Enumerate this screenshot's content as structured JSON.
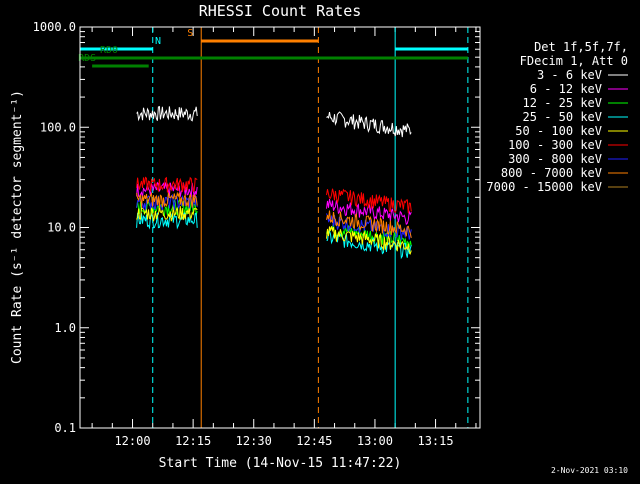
{
  "chart_data": {
    "type": "line",
    "title": "RHESSI Count Rates",
    "xlabel": "Start Time (14-Nov-15 11:47:22)",
    "ylabel": "Count Rate (s⁻¹ detector segment⁻¹)",
    "y_scale": "log",
    "ylim": [
      0.1,
      1000
    ],
    "xlim": [
      "11:47",
      "13:26"
    ],
    "x_ticks": [
      "12:00",
      "12:15",
      "12:30",
      "12:45",
      "13:00",
      "13:15"
    ],
    "y_ticks": [
      "0.1",
      "1.0",
      "10.0",
      "100.0",
      "1000.0"
    ],
    "footer": "2-Nov-2021 03:10",
    "legend_header": [
      "Det 1f,5f,7f,",
      "FDecim 1, Att 0"
    ],
    "legend_position": "top-right",
    "series": [
      {
        "name": "3 - 6 keV",
        "color": "#ffffff",
        "segments": [
          {
            "start": "12:01",
            "end": "12:16",
            "level": 138
          },
          {
            "start": "12:48",
            "end": "13:09",
            "level": 128
          }
        ]
      },
      {
        "name": "6 - 12 keV",
        "color": "#ff00ff",
        "segments": [
          {
            "start": "12:01",
            "end": "12:16",
            "level": 24
          },
          {
            "start": "12:48",
            "end": "13:09",
            "level": 17
          }
        ]
      },
      {
        "name": "12 - 25 keV",
        "color": "#00ff00",
        "segments": [
          {
            "start": "12:01",
            "end": "12:16",
            "level": 16
          },
          {
            "start": "12:48",
            "end": "13:09",
            "level": 10
          }
        ]
      },
      {
        "name": "25 - 50 keV",
        "color": "#00ffff",
        "segments": [
          {
            "start": "12:01",
            "end": "12:16",
            "level": 12
          },
          {
            "start": "12:48",
            "end": "13:09",
            "level": 8
          }
        ]
      },
      {
        "name": "50 - 100 keV",
        "color": "#ffff00",
        "segments": [
          {
            "start": "12:01",
            "end": "12:16",
            "level": 14
          },
          {
            "start": "12:48",
            "end": "13:09",
            "level": 9
          }
        ]
      },
      {
        "name": "100 - 300 keV",
        "color": "#ff0000",
        "segments": [
          {
            "start": "12:01",
            "end": "12:16",
            "level": 27
          },
          {
            "start": "12:48",
            "end": "13:09",
            "level": 22
          }
        ]
      },
      {
        "name": "300 - 800 keV",
        "color": "#2020ff",
        "segments": [
          {
            "start": "12:01",
            "end": "12:16",
            "level": 18
          },
          {
            "start": "12:48",
            "end": "13:09",
            "level": 12
          }
        ]
      },
      {
        "name": "800 - 7000 keV",
        "color": "#ff8000",
        "segments": [
          {
            "start": "12:01",
            "end": "12:16",
            "level": 19
          },
          {
            "start": "12:48",
            "end": "13:09",
            "level": 13
          }
        ]
      },
      {
        "name": "7000 - 15000 keV",
        "color": "#b08020",
        "segments": []
      }
    ],
    "annotations": [
      {
        "label": "N",
        "color": "#00ffff",
        "style": "bar",
        "start": "11:47",
        "end": "12:05"
      },
      {
        "label": "",
        "color": "#00ffff",
        "style": "bar",
        "start": "13:05",
        "end": "13:23"
      },
      {
        "label": "S",
        "color": "#ff8000",
        "style": "bar",
        "start": "12:17",
        "end": "12:46"
      },
      {
        "label": "RD0",
        "color": "#008000",
        "style": "bar",
        "start": "11:47",
        "end": "13:23"
      },
      {
        "label": "RDS",
        "color": "#008000",
        "style": "bar",
        "start": "11:50",
        "end": "12:04"
      }
    ],
    "vertical_markers": [
      {
        "time": "11:47",
        "color": "#00ffff",
        "style": "solid"
      },
      {
        "time": "12:05",
        "color": "#00ffff",
        "style": "dashed"
      },
      {
        "time": "12:17",
        "color": "#ff8000",
        "style": "solid"
      },
      {
        "time": "12:46",
        "color": "#ff8000",
        "style": "dashed"
      },
      {
        "time": "13:05",
        "color": "#00ffff",
        "style": "solid"
      },
      {
        "time": "13:23",
        "color": "#00ffff",
        "style": "dashed"
      }
    ]
  }
}
